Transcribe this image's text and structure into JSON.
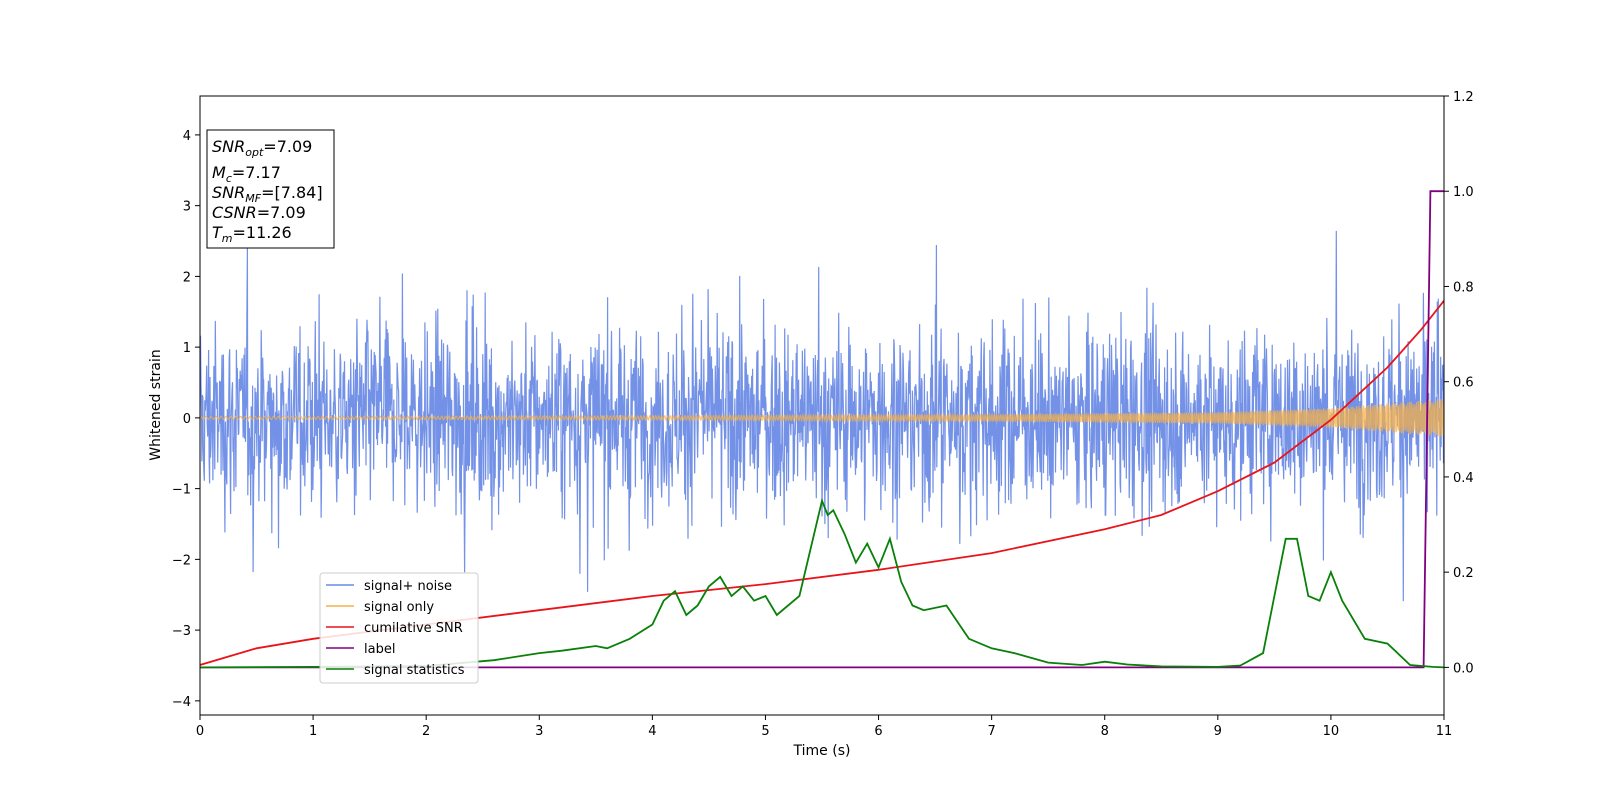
{
  "chart_data": {
    "type": "line",
    "title": "",
    "xlabel": "Time (s)",
    "ylabel": "Whitened strain",
    "xlim": [
      0,
      11
    ],
    "ylim": [
      -4.2,
      4.55
    ],
    "y2lim": [
      -0.1,
      1.2
    ],
    "grid": false,
    "legend_position": "lower-left",
    "x_ticks": [
      "0",
      "1",
      "2",
      "3",
      "4",
      "5",
      "6",
      "7",
      "8",
      "9",
      "10",
      "11"
    ],
    "y_ticks": [
      "4",
      "3",
      "2",
      "1",
      "0",
      "−1",
      "−2",
      "−3",
      "−4"
    ],
    "y2_ticks": [
      "1.2",
      "1.0",
      "0.8",
      "0.6",
      "0.4",
      "0.2",
      "0.0"
    ],
    "stats_box": {
      "snr_opt_base": "SNR",
      "snr_opt_sub": "opt",
      "snr_opt_value": "=7.09",
      "mc_base": "M",
      "mc_sub": "c",
      "mc_value": "=7.17",
      "snr_mf_base": "SNR",
      "snr_mf_sub": "MF",
      "snr_mf_value": "=[7.84]",
      "csnr_base": "CSNR",
      "csnr_value": "=7.09",
      "tm_base": "T",
      "tm_sub": "m",
      "tm_value": "=11.26"
    },
    "series": [
      {
        "name": "signal+ noise",
        "color": "#6a8be6",
        "axis": "left",
        "kind": "noise",
        "envelope": {
          "typical_band": [
            -1.9,
            1.9
          ],
          "max_spike": 4.15,
          "min_spike": -3.78
        }
      },
      {
        "name": "signal only",
        "color": "#f5b04a",
        "axis": "left",
        "kind": "chirp",
        "amplitude": {
          "x": [
            0,
            4,
            7,
            9,
            10,
            11
          ],
          "y": [
            0.02,
            0.03,
            0.05,
            0.08,
            0.14,
            0.27
          ]
        }
      },
      {
        "name": "cumilative SNR",
        "color": "#e8141a",
        "axis": "right",
        "x": [
          0,
          0.5,
          1,
          2,
          3,
          4,
          5,
          6,
          7,
          8,
          8.5,
          9,
          9.5,
          10,
          10.5,
          10.8,
          11
        ],
        "y": [
          0.005,
          0.04,
          0.06,
          0.09,
          0.12,
          0.15,
          0.175,
          0.205,
          0.24,
          0.29,
          0.32,
          0.37,
          0.43,
          0.52,
          0.63,
          0.71,
          0.77
        ]
      },
      {
        "name": "label",
        "color": "#800080",
        "axis": "right",
        "x": [
          0,
          10.82,
          10.88,
          11
        ],
        "y": [
          0,
          0,
          1,
          1
        ]
      },
      {
        "name": "signal statistics",
        "color": "#098009",
        "axis": "right",
        "x": [
          0,
          1,
          2,
          2.6,
          3,
          3.2,
          3.5,
          3.6,
          3.8,
          4,
          4.1,
          4.2,
          4.3,
          4.4,
          4.5,
          4.6,
          4.7,
          4.8,
          4.9,
          5,
          5.1,
          5.3,
          5.5,
          5.55,
          5.6,
          5.7,
          5.8,
          5.9,
          6,
          6.1,
          6.2,
          6.3,
          6.4,
          6.6,
          6.8,
          7,
          7.2,
          7.5,
          7.8,
          8,
          8.2,
          8.5,
          9,
          9.2,
          9.4,
          9.6,
          9.7,
          9.8,
          9.9,
          10,
          10.1,
          10.3,
          10.5,
          10.7,
          10.9,
          11
        ],
        "y": [
          0,
          0.001,
          0.003,
          0.015,
          0.03,
          0.035,
          0.045,
          0.04,
          0.06,
          0.09,
          0.14,
          0.16,
          0.11,
          0.13,
          0.17,
          0.19,
          0.15,
          0.17,
          0.14,
          0.15,
          0.11,
          0.15,
          0.35,
          0.32,
          0.33,
          0.28,
          0.22,
          0.26,
          0.21,
          0.27,
          0.18,
          0.13,
          0.12,
          0.13,
          0.06,
          0.04,
          0.03,
          0.01,
          0.005,
          0.012,
          0.006,
          0.002,
          0.001,
          0.004,
          0.03,
          0.27,
          0.27,
          0.15,
          0.14,
          0.2,
          0.14,
          0.06,
          0.05,
          0.005,
          0.001,
          0
        ]
      }
    ]
  }
}
